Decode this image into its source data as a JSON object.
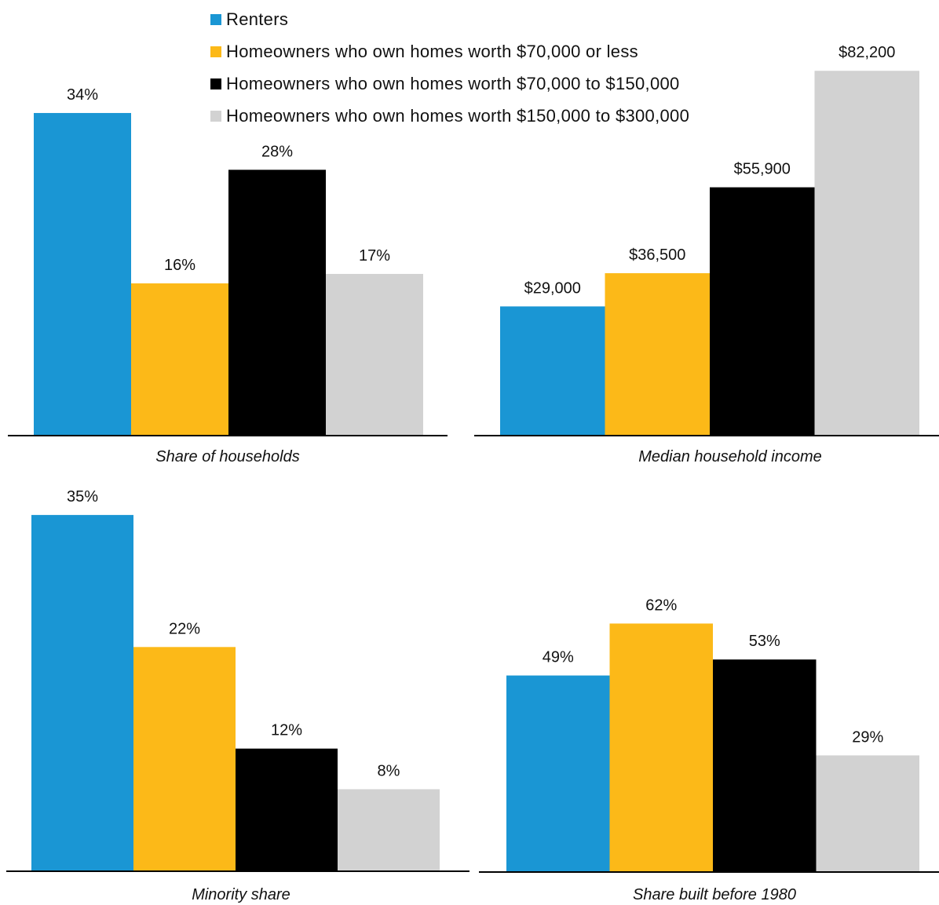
{
  "legend": [
    {
      "label": "Renters",
      "color": "#1a96d4"
    },
    {
      "label": "Homeowners who own homes worth $70,000 or less",
      "color": "#fcb918"
    },
    {
      "label": "Homeowners who own homes worth $70,000 to $150,000",
      "color": "#000000"
    },
    {
      "label": "Homeowners who own homes worth $150,000 to $300,000",
      "color": "#d2d2d2"
    }
  ],
  "chart_data": [
    {
      "type": "bar",
      "title": "",
      "xlabel": "Share of households",
      "categories": [
        "Renters",
        "Homeowners who own homes worth $70,000 or less",
        "Homeowners who own homes worth $70,000 to $150,000",
        "Homeowners who own homes worth $150,000 to $300,000"
      ],
      "values": [
        34,
        16,
        28,
        17
      ],
      "data_labels": [
        "34%",
        "16%",
        "28%",
        "17%"
      ],
      "ylim": [
        0,
        40
      ],
      "grid": false
    },
    {
      "type": "bar",
      "title": "",
      "xlabel": "Median household income",
      "categories": [
        "Renters",
        "Homeowners who own homes worth $70,000 or less",
        "Homeowners who own homes worth $70,000 to $150,000",
        "Homeowners who own homes worth $150,000 to $300,000"
      ],
      "values": [
        29000,
        36500,
        55900,
        82200
      ],
      "data_labels": [
        "$29,000",
        "$36,500",
        "$55,900",
        "$82,200"
      ],
      "ylim": [
        0,
        90000
      ],
      "grid": false
    },
    {
      "type": "bar",
      "title": "",
      "xlabel": "Minority share",
      "categories": [
        "Renters",
        "Homeowners who own homes worth $70,000 or less",
        "Homeowners who own homes worth $70,000 to $150,000",
        "Homeowners who own homes worth $150,000 to $300,000"
      ],
      "values": [
        35,
        22,
        12,
        8
      ],
      "data_labels": [
        "35%",
        "22%",
        "12%",
        "8%"
      ],
      "ylim": [
        0,
        40
      ],
      "grid": false
    },
    {
      "type": "bar",
      "title": "",
      "xlabel": "Share built before 1980",
      "categories": [
        "Renters",
        "Homeowners who own homes worth $70,000 or less",
        "Homeowners who own homes worth $70,000 to $150,000",
        "Homeowners who own homes worth $150,000 to $300,000"
      ],
      "values": [
        49,
        62,
        53,
        29
      ],
      "data_labels": [
        "49%",
        "62%",
        "53%",
        "29%"
      ],
      "ylim": [
        0,
        70
      ],
      "grid": false
    }
  ]
}
